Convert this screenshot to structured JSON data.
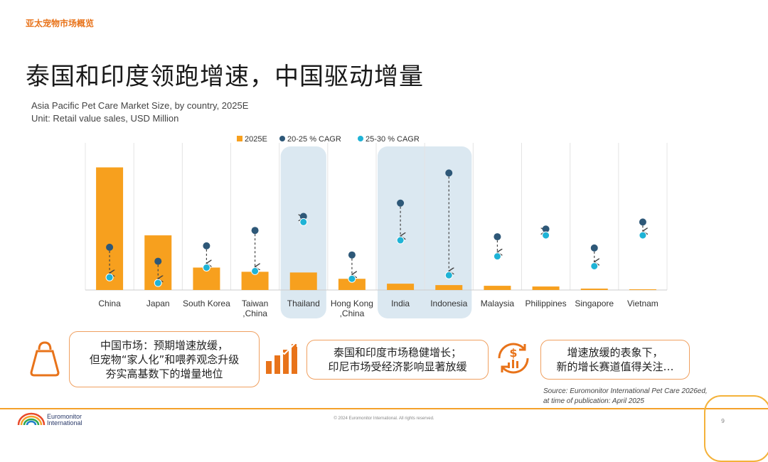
{
  "header": {
    "section_label": "亚太宠物市场概览",
    "headline": "泰国和印度领跑增速，中国驱动增量"
  },
  "chart_data": {
    "type": "bar",
    "title": "Asia Pacific Pet Care Market Size, by country, 2025E",
    "unit": "Unit: Retail value sales, USD Million",
    "categories": [
      "China",
      "Japan",
      "South Korea",
      "Taiwan\n,China",
      "Thailand",
      "Hong Kong\n,China",
      "India",
      "Indonesia",
      "Malaysia",
      "Philippines",
      "Singapore",
      "Vietnam"
    ],
    "values": [
      175,
      78,
      32,
      26,
      25,
      16,
      9,
      7,
      6,
      5,
      2,
      1
    ],
    "ylim": [
      0,
      210
    ],
    "series": [
      {
        "name": "2025E",
        "values": [
          175,
          78,
          32,
          26,
          25,
          16,
          9,
          7,
          6,
          5,
          2,
          1
        ]
      },
      {
        "name": "20-25 % CAGR",
        "values": [
          61,
          41,
          63,
          85,
          105,
          50,
          124,
          167,
          76,
          87,
          60,
          97
        ]
      },
      {
        "name": "25-30 % CAGR",
        "values": [
          18,
          10,
          32,
          27,
          97,
          16,
          71,
          21,
          48,
          78,
          34,
          78
        ]
      }
    ],
    "highlighted_categories": [
      "Thailand",
      "India",
      "Indonesia"
    ],
    "legend_position": "top",
    "grid": false,
    "colors": {
      "bar": "#f7a01e",
      "dot_dark": "#2e5878",
      "dot_light": "#1fb3d6",
      "highlight": "#dbe8f1"
    }
  },
  "callouts": [
    {
      "lines": [
        "中国市场：预期增速放缓，",
        "但宠物“家人化”和喂养观念升级",
        "夯实高基数下的增量地位"
      ],
      "icon": "kettlebell-icon"
    },
    {
      "lines": [
        "泰国和印度市场稳健增长；",
        "印尼市场受经济影响显著放缓"
      ],
      "icon": "bar-growth-icon"
    },
    {
      "lines": [
        "增速放缓的表象下，",
        "新的增长赛道值得关注…"
      ],
      "icon": "money-cycle-icon"
    }
  ],
  "source": {
    "line1": "Source: Euromonitor International Pet Care 2026ed,",
    "line2": "at time of publication: April 2025"
  },
  "footer": {
    "logo_line1": "Euromonitor",
    "logo_line2": "International",
    "copyright": "© 2024 Euromonitor International. All rights reserved.",
    "page": "9"
  }
}
